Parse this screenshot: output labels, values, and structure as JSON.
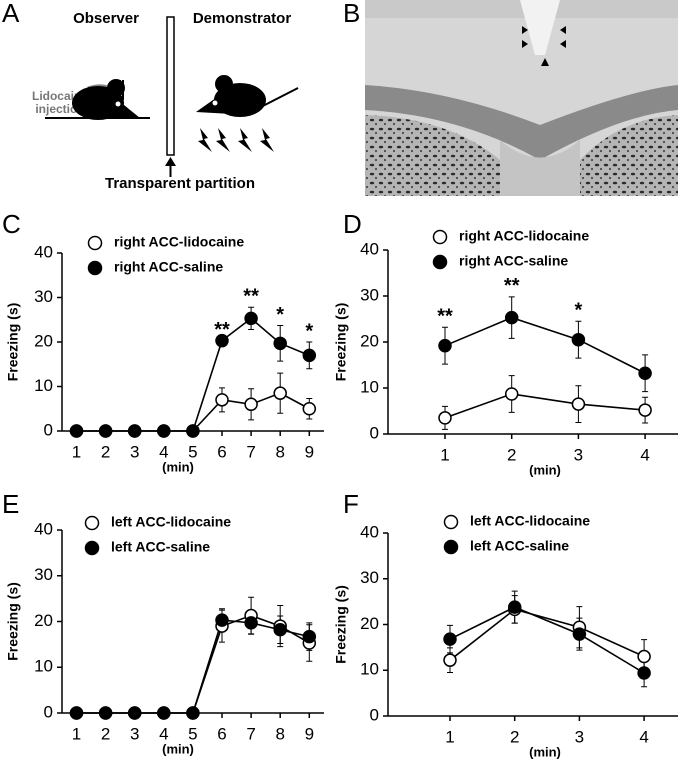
{
  "panels": {
    "a": {
      "label": "A",
      "observer": "Observer",
      "demonstrator": "Demonstrator",
      "injection": [
        "Lidocaine",
        "injection"
      ],
      "partition": "Transparent partition"
    },
    "b": {
      "label": "B"
    }
  },
  "chart_data": [
    {
      "type": "line",
      "panel_label": "C",
      "ylabel": "Freezing (s)",
      "xlabel": "(min)",
      "categories": [
        "1",
        "2",
        "3",
        "4",
        "5",
        "6",
        "7",
        "8",
        "9"
      ],
      "ylim": [
        0,
        40
      ],
      "yticks": [
        0,
        10,
        20,
        30,
        40
      ],
      "series": [
        {
          "name": "right ACC-lidocaine",
          "color": "#000000",
          "fill": "#ffffff",
          "values": [
            0,
            0,
            0,
            0,
            0,
            7,
            6,
            8.5,
            5
          ],
          "errors": [
            0,
            0,
            0,
            0,
            0,
            2.7,
            3.5,
            4.5,
            2.3
          ]
        },
        {
          "name": "right ACC-saline",
          "color": "#000000",
          "fill": "#000000",
          "values": [
            0,
            0,
            0,
            0,
            0,
            20.3,
            25.3,
            19.7,
            17
          ],
          "errors": [
            0,
            0,
            0,
            0,
            0,
            0,
            2.5,
            4,
            3
          ]
        }
      ],
      "annotations": [
        null,
        null,
        null,
        null,
        null,
        "**",
        "**",
        "*",
        "*"
      ]
    },
    {
      "type": "line",
      "panel_label": "D",
      "ylabel": "Freezing (s)",
      "xlabel": "(min)",
      "categories": [
        "1",
        "2",
        "3",
        "4"
      ],
      "ylim": [
        0,
        40
      ],
      "yticks": [
        0,
        10,
        20,
        30,
        40
      ],
      "series": [
        {
          "name": "right ACC-lidocaine",
          "color": "#000000",
          "fill": "#ffffff",
          "values": [
            3.5,
            8.7,
            6.5,
            5.2
          ],
          "errors": [
            2.5,
            4,
            4,
            2.8
          ]
        },
        {
          "name": "right ACC-saline",
          "color": "#000000",
          "fill": "#000000",
          "values": [
            19.2,
            25.3,
            20.5,
            13.2
          ],
          "errors": [
            4,
            4.5,
            4,
            4
          ]
        }
      ],
      "annotations": [
        "**",
        "**",
        "*",
        null
      ]
    },
    {
      "type": "line",
      "panel_label": "E",
      "ylabel": "Freezing (s)",
      "xlabel": "(min)",
      "categories": [
        "1",
        "2",
        "3",
        "4",
        "5",
        "6",
        "7",
        "8",
        "9"
      ],
      "ylim": [
        0,
        40
      ],
      "yticks": [
        0,
        10,
        20,
        30,
        40
      ],
      "series": [
        {
          "name": "left ACC-lidocaine",
          "color": "#000000",
          "fill": "#ffffff",
          "values": [
            0,
            0,
            0,
            0,
            0,
            19,
            21.3,
            19,
            15.3
          ],
          "errors": [
            0,
            0,
            0,
            0,
            0,
            3.5,
            4,
            4.5,
            4
          ]
        },
        {
          "name": "left ACC-saline",
          "color": "#000000",
          "fill": "#000000",
          "values": [
            0,
            0,
            0,
            0,
            0,
            20.3,
            19.7,
            18.2,
            16.7
          ],
          "errors": [
            0,
            0,
            0,
            0,
            0,
            2.5,
            2.5,
            3,
            3
          ]
        }
      ]
    },
    {
      "type": "line",
      "panel_label": "F",
      "ylabel": "Freezing (s)",
      "xlabel": "(min)",
      "categories": [
        "1",
        "2",
        "3",
        "4"
      ],
      "ylim": [
        0,
        40
      ],
      "yticks": [
        0,
        10,
        20,
        30,
        40
      ],
      "series": [
        {
          "name": "left ACC-lidocaine",
          "color": "#000000",
          "fill": "#ffffff",
          "values": [
            12.2,
            23.3,
            19.4,
            13
          ],
          "errors": [
            2.7,
            3,
            4.5,
            3.7
          ]
        },
        {
          "name": "left ACC-saline",
          "color": "#000000",
          "fill": "#000000",
          "values": [
            16.8,
            23.8,
            17.9,
            9.4
          ],
          "errors": [
            3,
            3.5,
            3.5,
            3
          ]
        }
      ]
    }
  ]
}
